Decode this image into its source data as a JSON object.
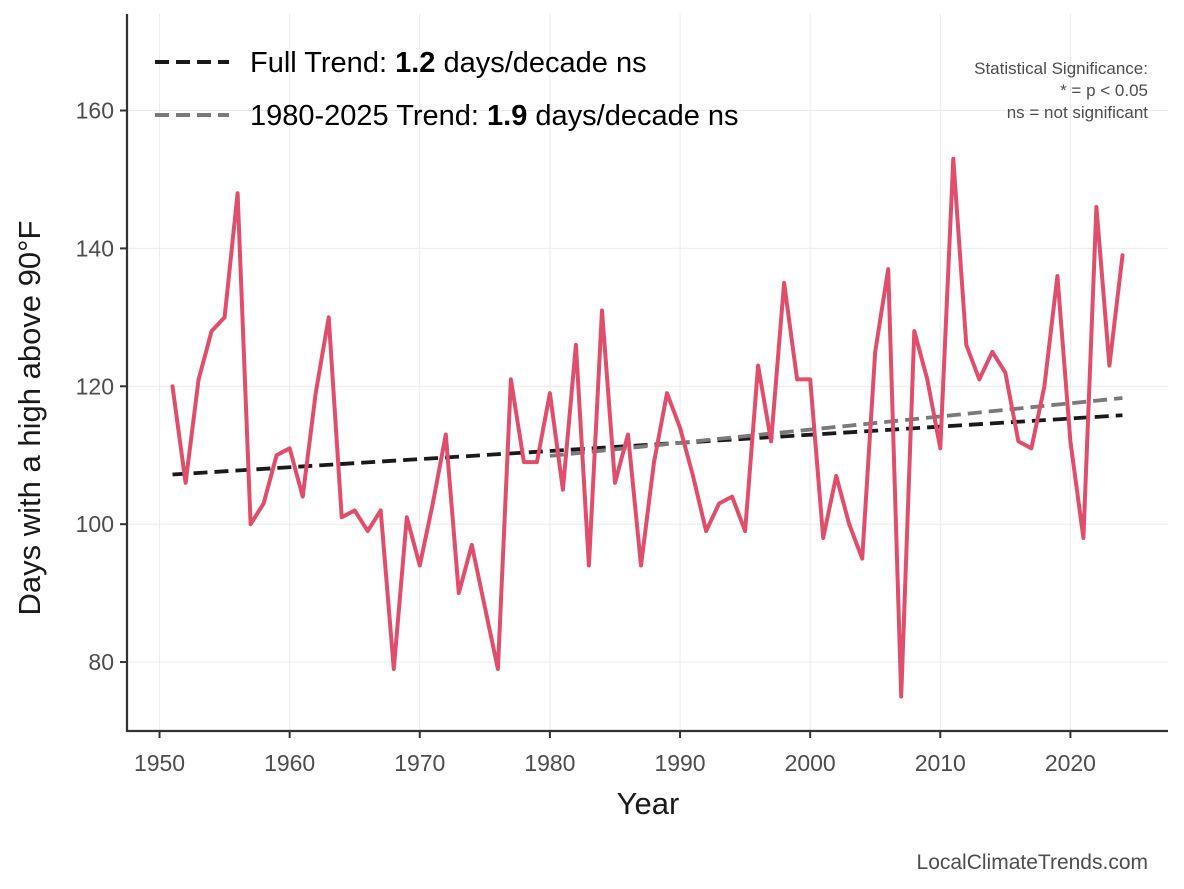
{
  "chart_data": {
    "type": "line",
    "xlabel": "Year",
    "ylabel": "Days with a high above 90°F",
    "xlim": [
      1947.5,
      2027.5
    ],
    "ylim": [
      70,
      174
    ],
    "x_ticks": [
      1950,
      1960,
      1970,
      1980,
      1990,
      2000,
      2010,
      2020
    ],
    "y_ticks": [
      80,
      100,
      120,
      140,
      160
    ],
    "grid": true,
    "series": [
      {
        "color": "#e04e6c",
        "x": [
          1951,
          1952,
          1953,
          1954,
          1955,
          1956,
          1957,
          1958,
          1959,
          1960,
          1961,
          1962,
          1963,
          1964,
          1965,
          1966,
          1967,
          1968,
          1969,
          1970,
          1971,
          1972,
          1973,
          1974,
          1975,
          1976,
          1977,
          1978,
          1979,
          1980,
          1981,
          1982,
          1983,
          1984,
          1985,
          1986,
          1987,
          1988,
          1989,
          1990,
          1991,
          1992,
          1993,
          1994,
          1995,
          1996,
          1997,
          1998,
          1999,
          2000,
          2001,
          2002,
          2003,
          2004,
          2005,
          2006,
          2007,
          2008,
          2009,
          2010,
          2011,
          2012,
          2013,
          2014,
          2015,
          2016,
          2017,
          2018,
          2019,
          2020,
          2021,
          2022,
          2023,
          2024
        ],
        "values": [
          120,
          106,
          121,
          128,
          130,
          148,
          100,
          103,
          110,
          111,
          104,
          119,
          130,
          101,
          102,
          99,
          102,
          79,
          101,
          94,
          103,
          113,
          90,
          97,
          88,
          79,
          121,
          109,
          109,
          119,
          105,
          126,
          94,
          131,
          106,
          113,
          94,
          109,
          119,
          114,
          107,
          99,
          103,
          104,
          99,
          123,
          112,
          135,
          121,
          121,
          98,
          107,
          100,
          95,
          125,
          137,
          75,
          128,
          121,
          111,
          153,
          126,
          121,
          125,
          122,
          112,
          111,
          120,
          136,
          112,
          98,
          146,
          123,
          139
        ]
      }
    ],
    "trends": [
      {
        "label_prefix": "Full Trend: ",
        "rate": "1.2",
        "label_suffix": " days/decade ns",
        "color": "#1a1a1a",
        "x": [
          1951,
          2024
        ],
        "y": [
          107.2,
          115.8
        ]
      },
      {
        "label_prefix": "1980-2025 Trend: ",
        "rate": "1.9",
        "label_suffix": " days/decade ns",
        "color": "#7a7a7a",
        "x": [
          1980,
          2024
        ],
        "y": [
          109.9,
          118.3
        ]
      }
    ],
    "significance_note": [
      "Statistical Significance:",
      "* = p < 0.05",
      "ns = not significant"
    ],
    "legend_position": "top-left"
  },
  "credit": "LocalClimateTrends.com"
}
